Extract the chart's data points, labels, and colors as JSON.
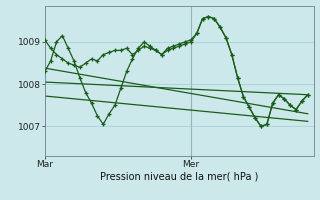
{
  "background_color": "#cce8eb",
  "grid_color": "#9ecdd1",
  "line_color": "#1a5c1a",
  "xlabel": "Pression niveau de la mer( hPa )",
  "yticks": [
    1007,
    1008,
    1009
  ],
  "ylim": [
    1006.3,
    1009.85
  ],
  "xlim": [
    0,
    46
  ],
  "xtick_positions": [
    0,
    25
  ],
  "xtick_labels": [
    "Mar",
    "Mer"
  ],
  "ver_line_x": 25,
  "ver_line_color": "#708090",
  "line1_x": [
    0,
    1,
    2,
    3,
    4,
    5,
    6,
    7,
    8,
    9,
    10,
    11,
    12,
    13,
    14,
    15,
    16,
    17,
    18,
    19,
    20,
    21,
    22,
    23,
    24,
    25,
    26,
    27,
    28,
    29,
    30,
    31,
    32,
    33,
    34,
    35,
    36,
    37,
    38,
    39,
    40,
    41,
    42,
    43,
    44,
    45
  ],
  "line1_y": [
    1009.05,
    1008.85,
    1008.7,
    1008.6,
    1008.5,
    1008.45,
    1008.4,
    1008.5,
    1008.6,
    1008.55,
    1008.7,
    1008.75,
    1008.8,
    1008.8,
    1008.85,
    1008.7,
    1008.8,
    1008.9,
    1008.85,
    1008.8,
    1008.7,
    1008.85,
    1008.9,
    1008.95,
    1009.0,
    1009.05,
    1009.2,
    1009.55,
    1009.6,
    1009.55,
    1009.35,
    1009.1,
    1008.7,
    1008.15,
    1007.7,
    1007.45,
    1007.2,
    1007.0,
    1007.05,
    1007.55,
    1007.75,
    1007.65,
    1007.5,
    1007.4,
    1007.6,
    1007.75
  ],
  "line2_x": [
    0,
    1,
    2,
    3,
    4,
    5,
    6,
    7,
    8,
    9,
    10,
    11,
    12,
    13,
    14,
    15,
    16,
    17,
    18,
    19,
    20,
    21,
    22,
    23,
    24,
    25,
    26,
    27,
    28,
    29,
    30,
    31,
    32,
    33,
    34,
    35,
    36,
    37,
    38,
    39,
    40,
    41,
    42,
    43,
    44,
    45
  ],
  "line2_y": [
    1008.3,
    1008.55,
    1009.0,
    1009.15,
    1008.85,
    1008.55,
    1008.15,
    1007.8,
    1007.55,
    1007.25,
    1007.05,
    1007.3,
    1007.5,
    1007.9,
    1008.3,
    1008.6,
    1008.85,
    1009.0,
    1008.9,
    1008.8,
    1008.7,
    1008.8,
    1008.85,
    1008.9,
    1008.95,
    1009.0,
    1009.2,
    1009.55,
    1009.6,
    1009.55,
    1009.35,
    1009.1,
    1008.7,
    1008.15,
    1007.7,
    1007.45,
    1007.2,
    1007.0,
    1007.05,
    1007.55,
    1007.75,
    1007.65,
    1007.5,
    1007.4,
    1007.6,
    1007.75
  ],
  "line3_x": [
    0,
    45
  ],
  "line3_y": [
    1008.05,
    1007.75
  ],
  "line4_x": [
    0,
    45
  ],
  "line4_y": [
    1008.38,
    1007.3
  ],
  "line5_x": [
    0,
    45
  ],
  "line5_y": [
    1007.72,
    1007.12
  ]
}
